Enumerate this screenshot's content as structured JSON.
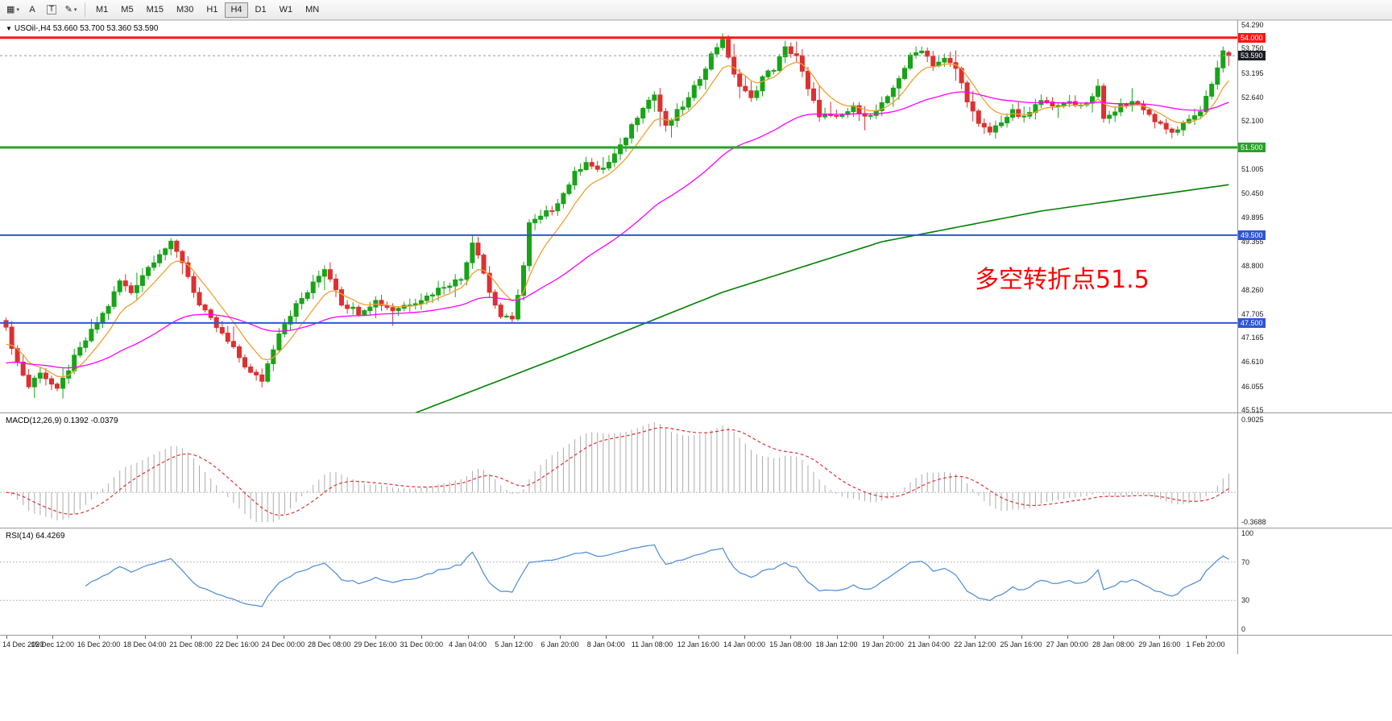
{
  "toolbar": {
    "tool_buttons": [
      {
        "id": "chart-windows",
        "glyph": "▦",
        "icon": "chart-grid-icon",
        "dropdown": true,
        "boxed": false
      },
      {
        "id": "text-label",
        "glyph": "A",
        "icon": "text-label-icon",
        "dropdown": false,
        "boxed": false
      },
      {
        "id": "text-box",
        "glyph": "T",
        "icon": "text-box-icon",
        "dropdown": false,
        "boxed": true
      },
      {
        "id": "draw-tools",
        "glyph": "✎",
        "icon": "draw-tools-icon",
        "dropdown": true,
        "boxed": false
      }
    ],
    "timeframes": [
      "M1",
      "M5",
      "M15",
      "M30",
      "H1",
      "H4",
      "D1",
      "W1",
      "MN"
    ],
    "active_timeframe": "H4"
  },
  "main_chart": {
    "title_arrow": "▼",
    "title": "USOil-,H4 53.660 53.700 53.360 53.590",
    "symbol": "USOil-",
    "period": "H4",
    "ohlc": {
      "open": "53.660",
      "high": "53.700",
      "low": "53.360",
      "close": "53.590"
    },
    "annotation": {
      "text": "多空转折点51.5",
      "color": "#ff0000"
    },
    "price_scale": {
      "min": 45.515,
      "max": 54.29,
      "labels": [
        {
          "text": "54.290",
          "value": 54.29
        },
        {
          "text": "53.750",
          "value": 53.75
        },
        {
          "text": "53.195",
          "value": 53.195
        },
        {
          "text": "52.640",
          "value": 52.64
        },
        {
          "text": "52.100",
          "value": 52.1
        },
        {
          "text": "51.005",
          "value": 51.005
        },
        {
          "text": "50.450",
          "value": 50.45
        },
        {
          "text": "49.895",
          "value": 49.895
        },
        {
          "text": "49.355",
          "value": 49.355
        },
        {
          "text": "48.800",
          "value": 48.8
        },
        {
          "text": "48.260",
          "value": 48.26
        },
        {
          "text": "47.705",
          "value": 47.705
        },
        {
          "text": "47.165",
          "value": 47.165
        },
        {
          "text": "46.610",
          "value": 46.61
        },
        {
          "text": "46.055",
          "value": 46.055
        },
        {
          "text": "45.515",
          "value": 45.515
        }
      ]
    },
    "levels": [
      {
        "value": 54.0,
        "label": "54.000",
        "color": "#ff1414",
        "width": 3
      },
      {
        "value": 51.5,
        "label": "51.500",
        "color": "#27a327",
        "width": 3
      },
      {
        "value": 49.5,
        "label": "49.500",
        "color": "#2f55d4",
        "width": 2
      },
      {
        "value": 47.5,
        "label": "47.500",
        "color": "#2f55d4",
        "width": 2
      }
    ],
    "current_price": {
      "value": 53.59,
      "label": "53.590",
      "color": "#1b1e24"
    },
    "colors": {
      "up": "#18a318",
      "down": "#dd3030",
      "ma_fast": "#f0a030",
      "ma_mid": "#ff00ff",
      "ma_slow": "#008000",
      "current_line": "#999999"
    }
  },
  "macd": {
    "label": "MACD(12,26,9) 0.1392 -0.0379",
    "params": "12,26,9",
    "main_value": "0.1392",
    "signal_value": "-0.0379",
    "range": {
      "min": -0.3688,
      "max": 0.9025
    },
    "scale_labels": [
      {
        "text": "0.9025",
        "value": 0.9025
      },
      {
        "text": "-0.3688",
        "value": -0.3688
      }
    ],
    "colors": {
      "hist": "#ababab",
      "signal": "#e03030",
      "zero": "#bbbbbb"
    }
  },
  "rsi": {
    "label": "RSI(14) 64.4269",
    "params": "14",
    "value": "64.4269",
    "levels": [
      70,
      30
    ],
    "scale_labels": [
      {
        "text": "100",
        "value": 100
      },
      {
        "text": "70",
        "value": 70
      },
      {
        "text": "30",
        "value": 30
      },
      {
        "text": "0",
        "value": 0
      }
    ],
    "colors": {
      "line": "#4a8ad4",
      "level": "#b8b8b8"
    }
  },
  "time_axis": [
    "14 Dec 2020",
    "15 Dec 12:00",
    "16 Dec 20:00",
    "18 Dec 04:00",
    "21 Dec 08:00",
    "22 Dec 16:00",
    "24 Dec 00:00",
    "28 Dec 08:00",
    "29 Dec 16:00",
    "31 Dec 00:00",
    "4 Jan 04:00",
    "5 Jan 12:00",
    "6 Jan 20:00",
    "8 Jan 04:00",
    "11 Jan 08:00",
    "12 Jan 16:00",
    "14 Jan 00:00",
    "15 Jan 08:00",
    "18 Jan 12:00",
    "19 Jan 20:00",
    "21 Jan 04:00",
    "22 Jan 12:00",
    "25 Jan 16:00",
    "27 Jan 00:00",
    "28 Jan 08:00",
    "29 Jan 16:00",
    "1 Feb 20:00"
  ],
  "chart_data": {
    "type": "candlestick",
    "symbol": "USOil-",
    "timeframe": "H4",
    "bars": 216,
    "title": "USOil-,H4",
    "ylim": [
      45.515,
      54.29
    ],
    "current_ohlc": {
      "open": 53.66,
      "high": 53.7,
      "low": 53.36,
      "close": 53.59
    },
    "last_candle": {
      "o": 53.66,
      "h": 53.7,
      "l": 53.36,
      "c": 53.59
    },
    "close_anchors": [
      [
        0,
        47.35
      ],
      [
        2,
        46.6
      ],
      [
        4,
        46.05
      ],
      [
        6,
        46.4
      ],
      [
        9,
        45.95
      ],
      [
        12,
        46.7
      ],
      [
        15,
        47.3
      ],
      [
        18,
        47.9
      ],
      [
        20,
        48.45
      ],
      [
        22,
        48.2
      ],
      [
        24,
        48.6
      ],
      [
        27,
        49.1
      ],
      [
        29,
        49.3
      ],
      [
        31,
        48.9
      ],
      [
        34,
        47.9
      ],
      [
        37,
        47.4
      ],
      [
        40,
        46.9
      ],
      [
        43,
        46.35
      ],
      [
        45,
        46.2
      ],
      [
        48,
        47.3
      ],
      [
        51,
        47.9
      ],
      [
        53,
        48.2
      ],
      [
        56,
        48.75
      ],
      [
        58,
        48.3
      ],
      [
        59,
        47.95
      ],
      [
        62,
        47.75
      ],
      [
        65,
        48.0
      ],
      [
        68,
        47.8
      ],
      [
        71,
        47.95
      ],
      [
        74,
        48.1
      ],
      [
        77,
        48.35
      ],
      [
        80,
        48.5
      ],
      [
        82,
        49.35
      ],
      [
        83,
        49.1
      ],
      [
        85,
        48.2
      ],
      [
        87,
        47.65
      ],
      [
        89,
        47.55
      ],
      [
        91,
        48.8
      ],
      [
        92,
        49.75
      ],
      [
        94,
        49.9
      ],
      [
        96,
        50.1
      ],
      [
        98,
        50.45
      ],
      [
        100,
        50.9
      ],
      [
        102,
        51.2
      ],
      [
        104,
        50.95
      ],
      [
        106,
        51.15
      ],
      [
        108,
        51.5
      ],
      [
        110,
        52.0
      ],
      [
        112,
        52.45
      ],
      [
        114,
        52.7
      ],
      [
        116,
        51.95
      ],
      [
        118,
        52.3
      ],
      [
        120,
        52.6
      ],
      [
        122,
        53.1
      ],
      [
        124,
        53.6
      ],
      [
        126,
        54.0
      ],
      [
        127,
        53.5
      ],
      [
        129,
        52.9
      ],
      [
        131,
        52.6
      ],
      [
        133,
        53.1
      ],
      [
        135,
        53.3
      ],
      [
        137,
        53.75
      ],
      [
        139,
        53.6
      ],
      [
        141,
        52.8
      ],
      [
        143,
        52.25
      ],
      [
        146,
        52.15
      ],
      [
        149,
        52.4
      ],
      [
        152,
        52.2
      ],
      [
        155,
        52.6
      ],
      [
        157,
        53.1
      ],
      [
        159,
        53.55
      ],
      [
        161,
        53.75
      ],
      [
        163,
        53.4
      ],
      [
        165,
        53.5
      ],
      [
        167,
        53.3
      ],
      [
        169,
        52.6
      ],
      [
        171,
        52.0
      ],
      [
        173,
        51.85
      ],
      [
        175,
        52.1
      ],
      [
        177,
        52.3
      ],
      [
        179,
        52.15
      ],
      [
        181,
        52.45
      ],
      [
        183,
        52.6
      ],
      [
        185,
        52.4
      ],
      [
        187,
        52.55
      ],
      [
        189,
        52.45
      ],
      [
        191,
        52.65
      ],
      [
        192,
        52.95
      ],
      [
        193,
        52.1
      ],
      [
        196,
        52.45
      ],
      [
        198,
        52.55
      ],
      [
        200,
        52.4
      ],
      [
        202,
        52.1
      ],
      [
        204,
        51.9
      ],
      [
        206,
        51.85
      ],
      [
        208,
        52.15
      ],
      [
        210,
        52.35
      ],
      [
        212,
        52.9
      ],
      [
        214,
        53.7
      ],
      [
        215,
        53.59
      ]
    ],
    "green_ma_anchors": [
      [
        72,
        45.45
      ],
      [
        98,
        46.75
      ],
      [
        126,
        48.2
      ],
      [
        154,
        49.35
      ],
      [
        182,
        50.05
      ],
      [
        215,
        50.65
      ]
    ],
    "moving_averages": [
      {
        "name": "fast",
        "period": 8,
        "color": "#f0a030"
      },
      {
        "name": "medium",
        "period": 45,
        "color": "#ff00ff"
      },
      {
        "name": "slow",
        "color": "#008000"
      }
    ],
    "horizontal_lines": [
      54.0,
      51.5,
      49.5,
      47.5
    ],
    "indicators": {
      "macd": {
        "params": [
          12,
          26,
          9
        ],
        "current_main": 0.1392,
        "current_signal": -0.0379,
        "range": [
          -0.3688,
          0.9025
        ]
      },
      "rsi": {
        "period": 14,
        "current": 64.4269,
        "levels": [
          70,
          30
        ],
        "range": [
          0,
          100
        ]
      }
    }
  }
}
